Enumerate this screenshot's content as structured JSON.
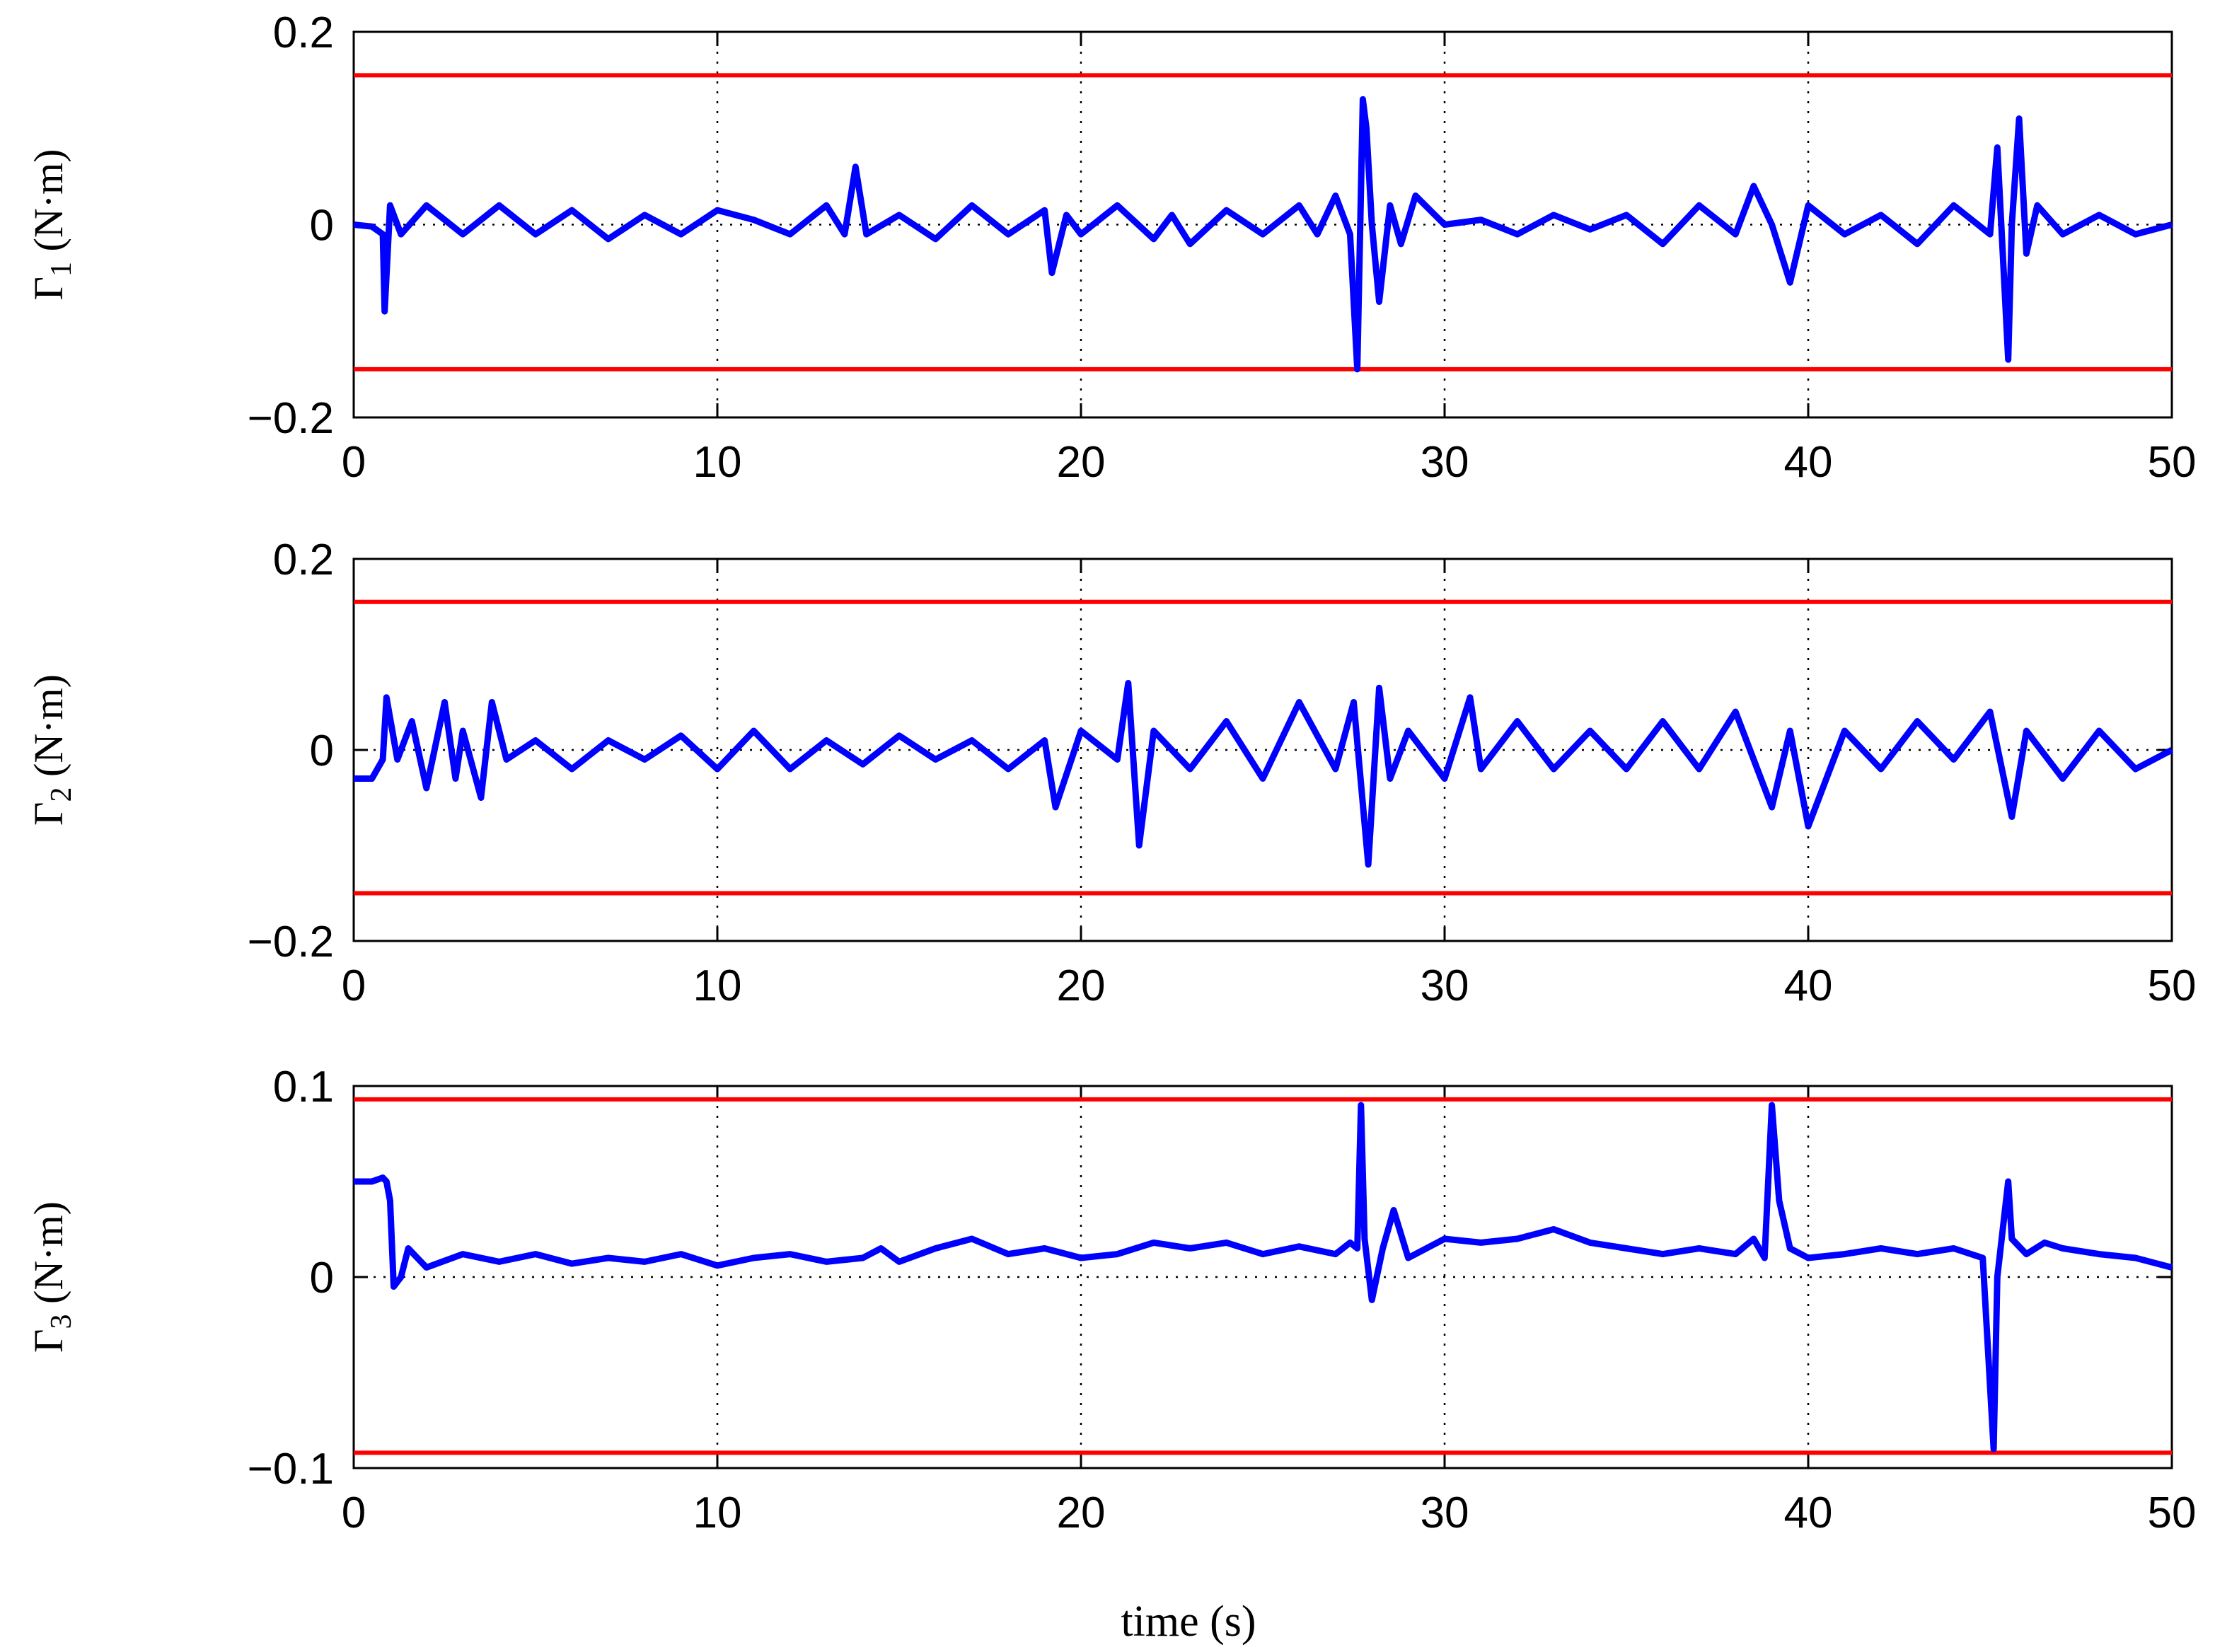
{
  "xlabel": "time (s)",
  "colors": {
    "signal": "#0000ff",
    "limit": "#ff0000",
    "axes": "#000000",
    "grid": "#000000"
  },
  "chart_data": [
    {
      "type": "line",
      "ylabel": {
        "symbol": "Γ",
        "sub": "1",
        "unit": "(N·m)"
      },
      "xlim": [
        0,
        50
      ],
      "ylim": [
        -0.2,
        0.2
      ],
      "xticks": [
        "0",
        "10",
        "20",
        "30",
        "40",
        "50"
      ],
      "yticks": [
        "−0.2",
        "0",
        "0.2"
      ],
      "ytick_values": [
        -0.2,
        0,
        0.2
      ],
      "grid": "dotted",
      "limits": [
        0.155,
        -0.15
      ],
      "series": [
        {
          "x": [
            0,
            0.5,
            0.8,
            0.85,
            1.0,
            1.3,
            2,
            3,
            4,
            5,
            6,
            7,
            8,
            9,
            10,
            11,
            12,
            13,
            13.5,
            13.8,
            14.1,
            15,
            16,
            17,
            18,
            19,
            19.2,
            19.6,
            20,
            21,
            22,
            22.5,
            23,
            24,
            25,
            26,
            26.5,
            27,
            27.4,
            27.6,
            27.75,
            27.85,
            28.0,
            28.2,
            28.5,
            28.8,
            29.2,
            30,
            31,
            32,
            33,
            34,
            35,
            36,
            37,
            38,
            38.5,
            39,
            39.5,
            40,
            41,
            42,
            43,
            44,
            45,
            45.2,
            45.5,
            45.6,
            45.8,
            46,
            46.3,
            47,
            48,
            49,
            50
          ],
          "y": [
            0,
            -0.002,
            -0.01,
            -0.09,
            0.02,
            -0.01,
            0.02,
            -0.01,
            0.02,
            -0.01,
            0.015,
            -0.015,
            0.01,
            -0.01,
            0.015,
            0.005,
            -0.01,
            0.02,
            -0.01,
            0.06,
            -0.01,
            0.01,
            -0.015,
            0.02,
            -0.01,
            0.015,
            -0.05,
            0.01,
            -0.01,
            0.02,
            -0.015,
            0.01,
            -0.02,
            0.015,
            -0.01,
            0.02,
            -0.01,
            0.03,
            -0.01,
            -0.15,
            0.13,
            0.1,
            0.0,
            -0.08,
            0.02,
            -0.02,
            0.03,
            0.0,
            0.005,
            -0.01,
            0.01,
            -0.005,
            0.01,
            -0.02,
            0.02,
            -0.01,
            0.04,
            0.0,
            -0.06,
            0.02,
            -0.01,
            0.01,
            -0.02,
            0.02,
            -0.01,
            0.08,
            -0.14,
            0.0,
            0.11,
            -0.03,
            0.02,
            -0.01,
            0.01,
            -0.01,
            0.0
          ]
        }
      ]
    },
    {
      "type": "line",
      "ylabel": {
        "symbol": "Γ",
        "sub": "2",
        "unit": "(N·m)"
      },
      "xlim": [
        0,
        50
      ],
      "ylim": [
        -0.2,
        0.2
      ],
      "xticks": [
        "0",
        "10",
        "20",
        "30",
        "40",
        "50"
      ],
      "yticks": [
        "−0.2",
        "0",
        "0.2"
      ],
      "ytick_values": [
        -0.2,
        0,
        0.2
      ],
      "grid": "dotted",
      "limits": [
        0.155,
        -0.15
      ],
      "series": [
        {
          "x": [
            0,
            0.5,
            0.8,
            0.9,
            1.2,
            1.6,
            2,
            2.5,
            2.8,
            3,
            3.5,
            3.8,
            4.2,
            5,
            6,
            7,
            8,
            9,
            10,
            11,
            12,
            13,
            14,
            15,
            16,
            17,
            18,
            19,
            19.3,
            20,
            21,
            21.3,
            21.6,
            22,
            23,
            24,
            25,
            26,
            27,
            27.5,
            27.9,
            28.2,
            28.5,
            29,
            30,
            30.7,
            31,
            32,
            33,
            34,
            35,
            36,
            37,
            38,
            39,
            39.5,
            40,
            41,
            42,
            43,
            44,
            45,
            45.6,
            46,
            47,
            48,
            49,
            50
          ],
          "y": [
            -0.03,
            -0.03,
            -0.01,
            0.055,
            -0.01,
            0.03,
            -0.04,
            0.05,
            -0.03,
            0.02,
            -0.05,
            0.05,
            -0.01,
            0.01,
            -0.02,
            0.01,
            -0.01,
            0.015,
            -0.02,
            0.02,
            -0.02,
            0.01,
            -0.015,
            0.015,
            -0.01,
            0.01,
            -0.02,
            0.01,
            -0.06,
            0.02,
            -0.01,
            0.07,
            -0.1,
            0.02,
            -0.02,
            0.03,
            -0.03,
            0.05,
            -0.02,
            0.05,
            -0.12,
            0.065,
            -0.03,
            0.02,
            -0.03,
            0.055,
            -0.02,
            0.03,
            -0.02,
            0.02,
            -0.02,
            0.03,
            -0.02,
            0.04,
            -0.06,
            0.02,
            -0.08,
            0.02,
            -0.02,
            0.03,
            -0.01,
            0.04,
            -0.07,
            0.02,
            -0.03,
            0.02,
            -0.02,
            0.0
          ]
        }
      ]
    },
    {
      "type": "line",
      "ylabel": {
        "symbol": "Γ",
        "sub": "3",
        "unit": "(N·m)"
      },
      "xlim": [
        0,
        50
      ],
      "ylim": [
        -0.1,
        0.1
      ],
      "xticks": [
        "0",
        "10",
        "20",
        "30",
        "40",
        "50"
      ],
      "yticks": [
        "−0.1",
        "0",
        "0.1"
      ],
      "ytick_values": [
        -0.1,
        0,
        0.1
      ],
      "grid": "dotted",
      "limits": [
        0.093,
        -0.092
      ],
      "series": [
        {
          "x": [
            0,
            0.5,
            0.8,
            0.9,
            1.0,
            1.1,
            1.3,
            1.5,
            2,
            3,
            4,
            5,
            6,
            7,
            8,
            9,
            10,
            11,
            12,
            13,
            14,
            14.5,
            15,
            16,
            17,
            18,
            19,
            20,
            21,
            22,
            23,
            24,
            25,
            26,
            27,
            27.4,
            27.6,
            27.7,
            27.8,
            28.0,
            28.3,
            28.6,
            29,
            30,
            31,
            32,
            33,
            34,
            35,
            36,
            37,
            38,
            38.5,
            38.8,
            39.0,
            39.2,
            39.5,
            40,
            41,
            42,
            43,
            44,
            44.8,
            45.1,
            45.2,
            45.5,
            45.6,
            46,
            46.5,
            47,
            48,
            49,
            50
          ],
          "y": [
            0.05,
            0.05,
            0.052,
            0.05,
            0.04,
            -0.005,
            0.0,
            0.015,
            0.005,
            0.012,
            0.008,
            0.012,
            0.007,
            0.01,
            0.008,
            0.012,
            0.006,
            0.01,
            0.012,
            0.008,
            0.01,
            0.015,
            0.008,
            0.015,
            0.02,
            0.012,
            0.015,
            0.01,
            0.012,
            0.018,
            0.015,
            0.018,
            0.012,
            0.016,
            0.012,
            0.018,
            0.015,
            0.09,
            0.02,
            -0.012,
            0.015,
            0.035,
            0.01,
            0.02,
            0.018,
            0.02,
            0.025,
            0.018,
            0.015,
            0.012,
            0.015,
            0.012,
            0.02,
            0.01,
            0.09,
            0.04,
            0.015,
            0.01,
            0.012,
            0.015,
            0.012,
            0.015,
            0.01,
            -0.09,
            0.0,
            0.05,
            0.02,
            0.012,
            0.018,
            0.015,
            0.012,
            0.01,
            0.005
          ]
        }
      ]
    }
  ]
}
